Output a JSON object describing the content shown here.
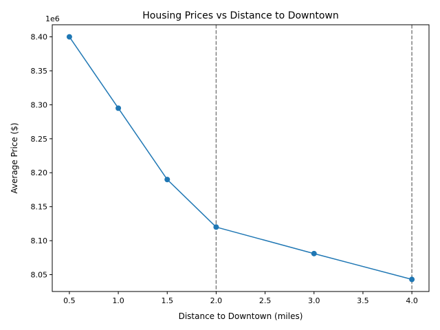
{
  "chart_data": {
    "type": "line",
    "title": "Housing Prices vs Distance to Downtown",
    "xlabel": "Distance to Downtown (miles)",
    "ylabel": "Average Price ($)",
    "y_offset_label": "1e6",
    "xlim": [
      0.325,
      4.175
    ],
    "ylim": [
      8.0252,
      8.4178
    ],
    "x_ticks": [
      0.5,
      1.0,
      1.5,
      2.0,
      2.5,
      3.0,
      3.5,
      4.0
    ],
    "x_tick_labels": [
      "0.5",
      "1.0",
      "1.5",
      "2.0",
      "2.5",
      "3.0",
      "3.5",
      "4.0"
    ],
    "y_ticks": [
      8.05,
      8.1,
      8.15,
      8.2,
      8.25,
      8.3,
      8.35,
      8.4
    ],
    "y_tick_labels": [
      "8.05",
      "8.10",
      "8.15",
      "8.20",
      "8.25",
      "8.30",
      "8.35",
      "8.40"
    ],
    "grid": false,
    "series": [
      {
        "x": [
          0.5,
          1.0,
          1.5,
          2.0,
          3.0,
          4.0
        ],
        "y": [
          8.4,
          8.295,
          8.19,
          8.12,
          8.081,
          8.043
        ],
        "color": "#1f77b4",
        "marker": "circle"
      }
    ],
    "vlines": [
      {
        "x": 2.0,
        "color": "#808080",
        "style": "dashed"
      },
      {
        "x": 4.0,
        "color": "#808080",
        "style": "dashed"
      }
    ]
  }
}
